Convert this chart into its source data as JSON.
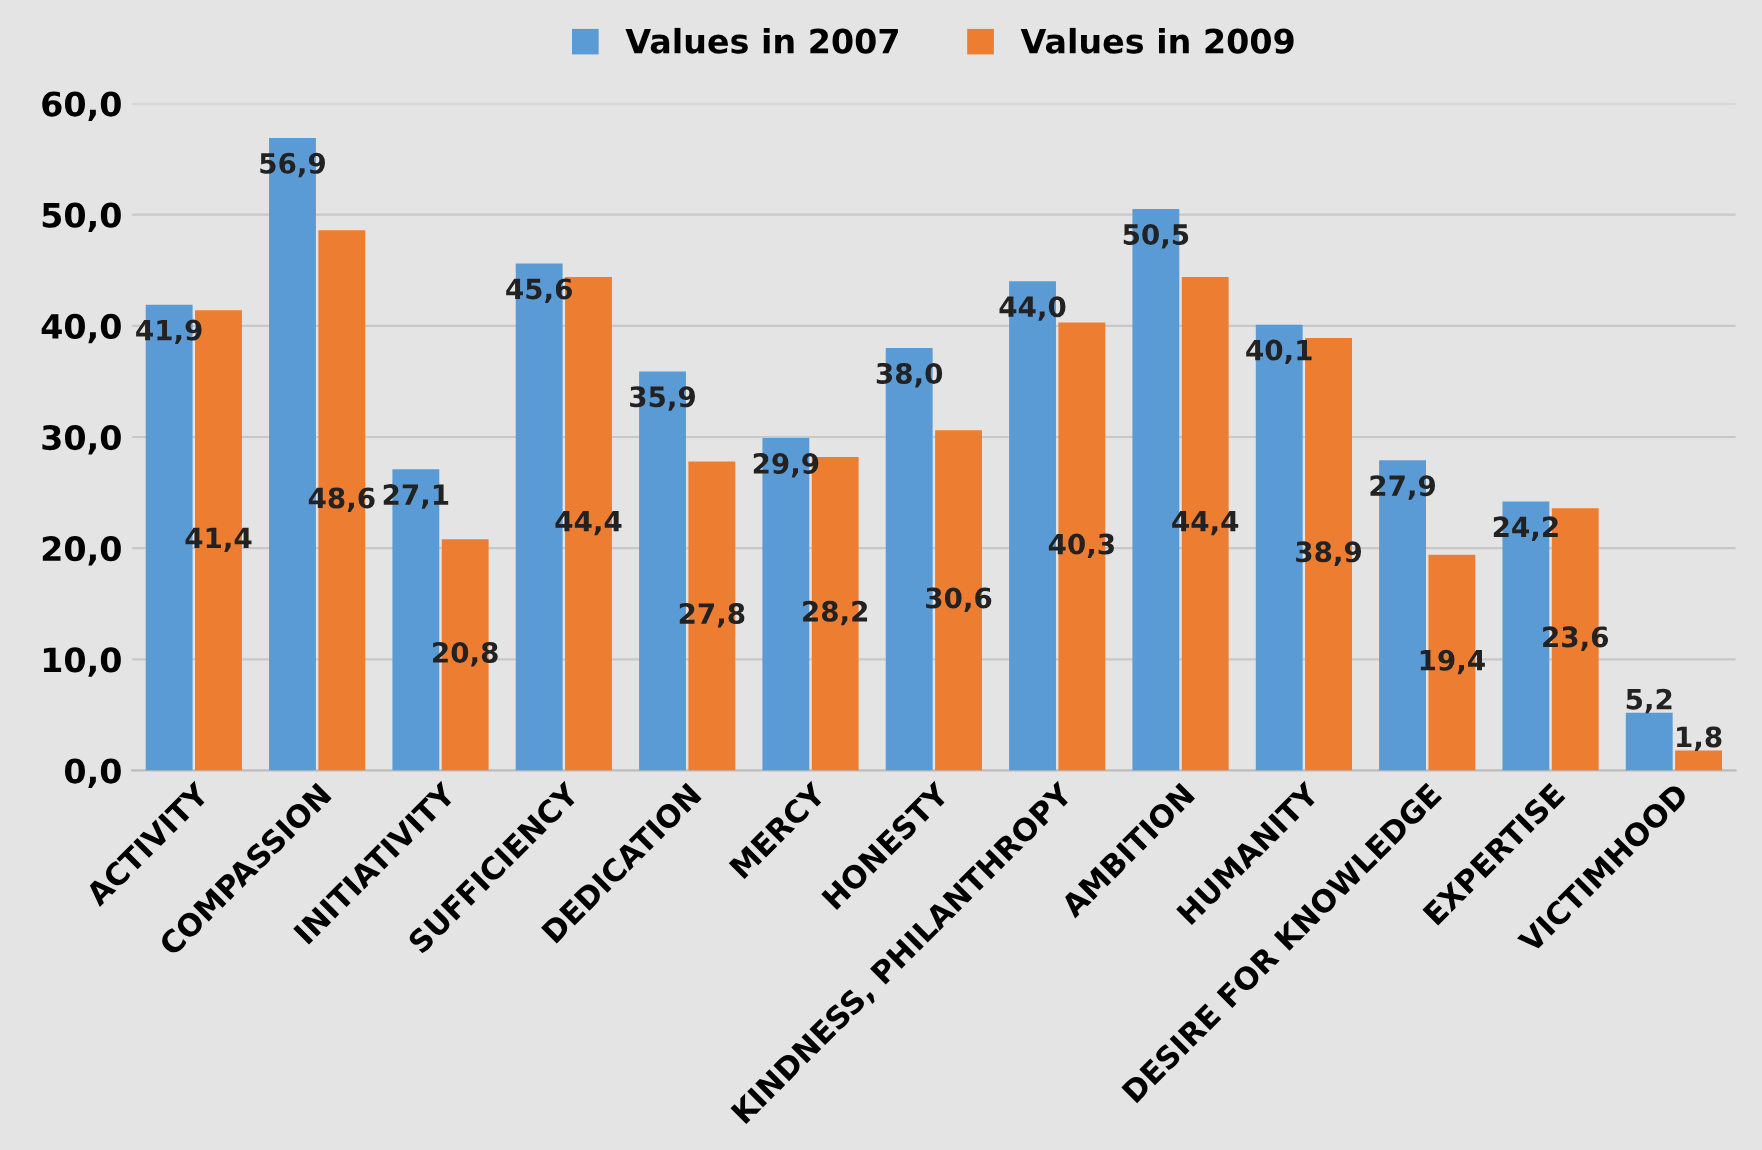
{
  "chart_data": {
    "type": "bar",
    "categories": [
      "ACTIVITY",
      "COMPASSION",
      "INITIATIVITY",
      "SUFFICIENCY",
      "DEDICATION",
      "MERCY",
      "HONESTY",
      "KINDNESS, PHILANTHROPY",
      "AMBITION",
      "HUMANITY",
      "DESIRE FOR KNOWLEDGE",
      "EXPERTISE",
      "VICTIMHOOD"
    ],
    "series": [
      {
        "name": "Values in 2007",
        "color": "#5b9bd5",
        "values": [
          41.9,
          56.9,
          27.1,
          45.6,
          35.9,
          29.9,
          38.0,
          44.0,
          50.5,
          40.1,
          27.9,
          24.2,
          5.2
        ],
        "value_labels": [
          "41,9",
          "56,9",
          "27,1",
          "45,6",
          "35,9",
          "29,9",
          "38,0",
          "44,0",
          "50,5",
          "40,1",
          "27,9",
          "24,2",
          "5,2"
        ]
      },
      {
        "name": "Values in 2009",
        "color": "#ed7d31",
        "values": [
          41.4,
          48.6,
          20.8,
          44.4,
          27.8,
          28.2,
          30.6,
          40.3,
          44.4,
          38.9,
          19.4,
          23.6,
          1.8
        ],
        "value_labels": [
          "41,4",
          "48,6",
          "20,8",
          "44,4",
          "27,8",
          "28,2",
          "30,6",
          "40,3",
          "44,4",
          "38,9",
          "19,4",
          "23,6",
          "1,8"
        ]
      }
    ],
    "ylim": [
      0,
      60
    ],
    "yticks": [
      {
        "value": 0,
        "label": "0,0"
      },
      {
        "value": 10,
        "label": "10,0"
      },
      {
        "value": 20,
        "label": "20,0"
      },
      {
        "value": 30,
        "label": "30,0"
      },
      {
        "value": 40,
        "label": "40,0"
      },
      {
        "value": 50,
        "label": "50,0"
      },
      {
        "value": 60,
        "label": "60,0"
      }
    ],
    "grid": "y",
    "legend": "top"
  }
}
